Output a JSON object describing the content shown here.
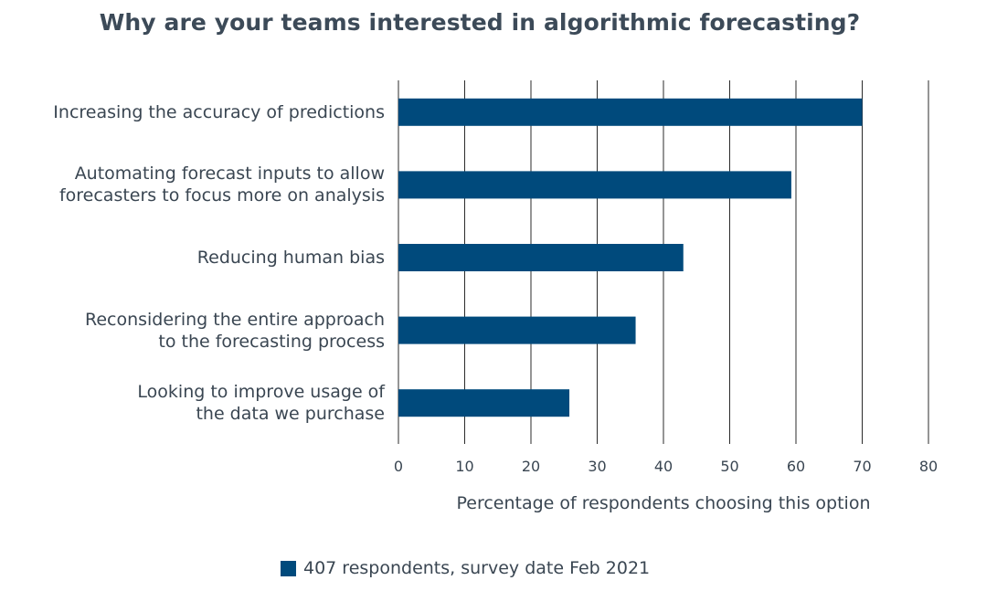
{
  "chart_data": {
    "type": "bar",
    "orientation": "horizontal",
    "title": "Why are your teams interested in algorithmic forecasting?",
    "categories": [
      "Increasing the accuracy of predictions",
      "Automating forecast inputs to allow\nforecasters to focus more on analysis",
      "Reducing human bias",
      "Reconsidering the entire approach\nto the forecasting process",
      "Looking to improve usage of\nthe data we purchase"
    ],
    "series": [
      {
        "name": "407 respondents, survey date Feb 2021",
        "values": [
          70,
          59.3,
          43,
          35.8,
          25.8
        ]
      }
    ],
    "xlabel": "Percentage of respondents choosing this option",
    "ylabel": "",
    "xlim": [
      0,
      80
    ],
    "xticks": [
      "0",
      "10",
      "20",
      "30",
      "40",
      "50",
      "60",
      "70",
      "80"
    ],
    "grid": "vertical",
    "legend_position": "bottom",
    "bar_color": "#004a7c",
    "gridline_color": "#2b2b2b"
  }
}
